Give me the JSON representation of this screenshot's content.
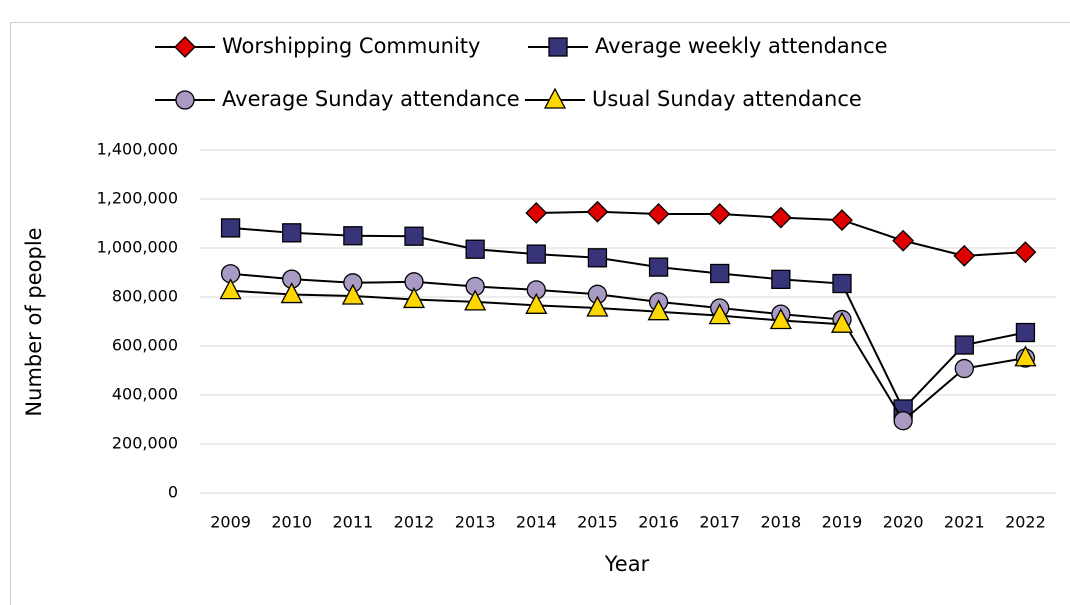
{
  "chart_data": {
    "type": "line",
    "x_label": "Year",
    "y_label": "Number of people",
    "categories": [
      "2009",
      "2010",
      "2011",
      "2012",
      "2013",
      "2014",
      "2015",
      "2016",
      "2017",
      "2018",
      "2019",
      "2020",
      "2021",
      "2022"
    ],
    "series": [
      {
        "name": "Worshipping Community",
        "color": "#e00000",
        "marker": "diamond",
        "values": [
          null,
          null,
          null,
          null,
          null,
          1143000,
          1148000,
          1139000,
          1139000,
          1124000,
          1114000,
          1030000,
          968000,
          983000
        ]
      },
      {
        "name": "Average weekly attendance",
        "color": "#37347a",
        "marker": "square",
        "values": [
          1082000,
          1062000,
          1050000,
          1048000,
          995000,
          975000,
          960000,
          922000,
          896000,
          872000,
          855000,
          343000,
          604000,
          655000
        ]
      },
      {
        "name": "Average Sunday attendance",
        "color": "#a99ac4",
        "marker": "circle",
        "values": [
          895000,
          873000,
          858000,
          862000,
          843000,
          829000,
          811000,
          780000,
          755000,
          730000,
          708000,
          295000,
          508000,
          551000
        ]
      },
      {
        "name": "Usual Sunday attendance",
        "color": "#ffd700",
        "marker": "triangle",
        "values": [
          826000,
          810000,
          804000,
          790000,
          780000,
          766000,
          755000,
          740000,
          724000,
          704000,
          689000,
          null,
          null,
          552000
        ]
      }
    ],
    "ylim": [
      0,
      1400000
    ],
    "yticks": [
      0,
      {
        "value": 200000,
        "label": "200,000"
      },
      {
        "value": 400000,
        "label": "400,000"
      },
      {
        "value": 600000,
        "label": "600,000"
      },
      {
        "value": 800000,
        "label": "800,000"
      },
      {
        "value": 1000000,
        "label": "1,000,000"
      },
      {
        "value": 1200000,
        "label": "1,200,000"
      },
      {
        "value": 1400000,
        "label": "1,400,000"
      }
    ],
    "grid": true,
    "legend": "top"
  }
}
